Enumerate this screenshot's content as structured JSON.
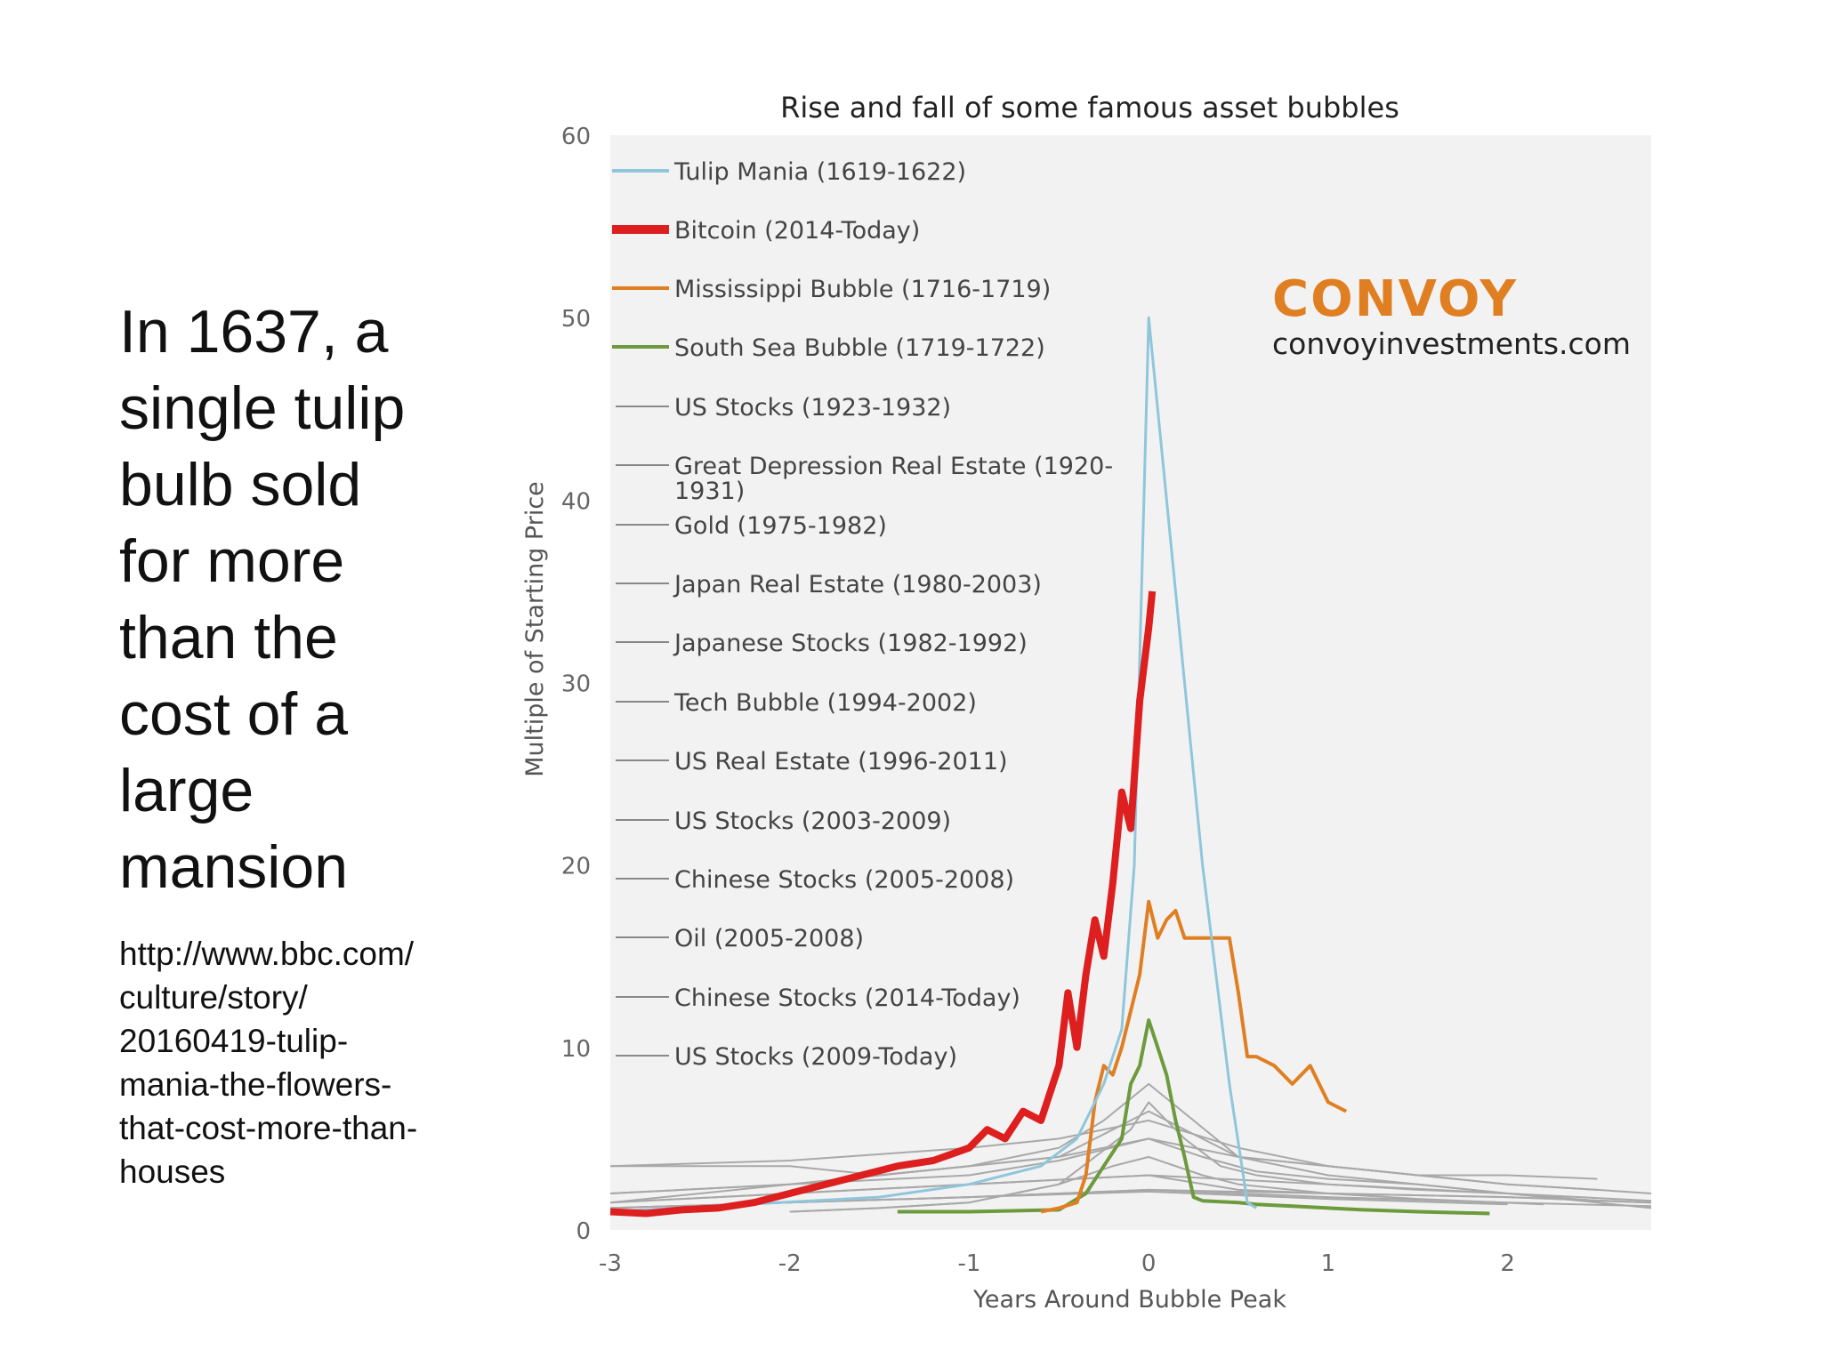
{
  "slide": {
    "headline_lines": [
      "In 1637, a",
      "single tulip",
      "bulb sold",
      "for more",
      "than the",
      "cost of a",
      "large",
      "mansion"
    ],
    "source_lines": [
      "http://www.bbc.com/",
      "culture/story/",
      "20160419-tulip-",
      "mania-the-flowers-",
      "that-cost-more-than-",
      "houses"
    ]
  },
  "brand": {
    "name": "CONVOY",
    "url": "convoyinvestments.com",
    "color": "#e07f22"
  },
  "chart_data": {
    "type": "line",
    "title": "Rise and fall of some famous asset bubbles",
    "xlabel": "Years Around Bubble Peak",
    "ylabel": "Multiple of Starting Price",
    "xlim": [
      -3,
      2.8
    ],
    "ylim": [
      0,
      60
    ],
    "xticks": [
      "-3",
      "-2",
      "-1",
      "0",
      "1",
      "2"
    ],
    "yticks": [
      "0",
      "10",
      "20",
      "30",
      "40",
      "50",
      "60"
    ],
    "background": "#f2f2f2",
    "legend_position": "top-left",
    "series": [
      {
        "name": "Tulip Mania (1619-1622)",
        "color": "#8fc6dc",
        "width": 3,
        "x": [
          -3,
          -1.5,
          -1.0,
          -0.6,
          -0.4,
          -0.25,
          -0.15,
          -0.08,
          0,
          0.15,
          0.3,
          0.45,
          0.55,
          0.6
        ],
        "y": [
          1,
          1.8,
          2.5,
          3.5,
          5,
          8,
          11,
          20,
          50,
          35,
          20,
          8,
          1.5,
          1.2
        ]
      },
      {
        "name": "Bitcoin (2014-Today)",
        "color": "#dd1f1f",
        "width": 8,
        "x": [
          -3,
          -2.8,
          -2.6,
          -2.4,
          -2.2,
          -2.0,
          -1.8,
          -1.6,
          -1.4,
          -1.2,
          -1.0,
          -0.9,
          -0.8,
          -0.7,
          -0.6,
          -0.5,
          -0.45,
          -0.4,
          -0.35,
          -0.3,
          -0.25,
          -0.2,
          -0.15,
          -0.1,
          -0.05,
          0,
          0.02
        ],
        "y": [
          1,
          0.9,
          1.1,
          1.2,
          1.5,
          2,
          2.5,
          3,
          3.5,
          3.8,
          4.5,
          5.5,
          5,
          6.5,
          6,
          9,
          13,
          10,
          14,
          17,
          15,
          19,
          24,
          22,
          29,
          33,
          35
        ]
      },
      {
        "name": "Mississippi Bubble (1716-1719)",
        "color": "#e07f22",
        "width": 4,
        "x": [
          -0.6,
          -0.5,
          -0.4,
          -0.35,
          -0.3,
          -0.25,
          -0.2,
          -0.15,
          -0.1,
          -0.05,
          0,
          0.05,
          0.1,
          0.15,
          0.2,
          0.3,
          0.45,
          0.5,
          0.55,
          0.6,
          0.7,
          0.8,
          0.9,
          1.0,
          1.1
        ],
        "y": [
          1,
          1.2,
          1.5,
          3,
          7,
          9,
          8.5,
          10,
          12,
          14,
          18,
          16,
          17,
          17.5,
          16,
          16,
          16,
          13,
          9.5,
          9.5,
          9,
          8,
          9,
          7,
          6.5
        ]
      },
      {
        "name": "South Sea Bubble (1719-1722)",
        "color": "#6d9a3c",
        "width": 4,
        "x": [
          -1.4,
          -1,
          -0.5,
          -0.35,
          -0.25,
          -0.15,
          -0.1,
          -0.05,
          0,
          0.05,
          0.1,
          0.15,
          0.2,
          0.25,
          0.3,
          0.5,
          0.6,
          0.8,
          1.0,
          1.2,
          1.5,
          1.9
        ],
        "y": [
          1,
          1,
          1.1,
          2,
          3.5,
          5,
          8,
          9,
          11.5,
          10,
          8.5,
          6,
          4,
          1.8,
          1.6,
          1.5,
          1.4,
          1.3,
          1.2,
          1.1,
          1,
          0.9
        ]
      },
      {
        "name": "US Stocks (1923-1932)",
        "color": "#a8a8a8",
        "width": 2,
        "x": [
          -3,
          -2,
          -1,
          -0.5,
          0,
          0.5,
          1.0,
          1.5,
          2.0,
          2.5,
          2.8
        ],
        "y": [
          2,
          2.5,
          3.5,
          4,
          5,
          4,
          3,
          2.5,
          2,
          1.5,
          1.2
        ]
      },
      {
        "name": "Great Depression Real Estate (1920-1931)",
        "color": "#a8a8a8",
        "width": 2,
        "x": [
          -3,
          -2,
          -1,
          0,
          1,
          2,
          2.8
        ],
        "y": [
          1.2,
          1.5,
          1.8,
          2.2,
          2,
          1.8,
          1.5
        ]
      },
      {
        "name": "Gold (1975-1982)",
        "color": "#a8a8a8",
        "width": 2,
        "x": [
          -3,
          -2,
          -1.5,
          -1,
          -0.5,
          -0.2,
          0,
          0.2,
          0.5,
          1,
          1.5,
          2,
          2.5
        ],
        "y": [
          3.5,
          3.5,
          3,
          3.5,
          4,
          5.5,
          6.5,
          5.5,
          4,
          3.5,
          3,
          3,
          2.8
        ]
      },
      {
        "name": "Japan Real Estate (1980-2003)",
        "color": "#a8a8a8",
        "width": 2,
        "x": [
          -3,
          -2,
          -1,
          0,
          1,
          2,
          2.8
        ],
        "y": [
          1.5,
          2,
          2.5,
          3,
          2.5,
          2,
          1.6
        ]
      },
      {
        "name": "Japanese Stocks (1982-1992)",
        "color": "#a8a8a8",
        "width": 2,
        "x": [
          -3,
          -2,
          -1,
          -0.5,
          0,
          0.5,
          1,
          1.5,
          2,
          2.5,
          2.8
        ],
        "y": [
          3.5,
          3.8,
          4.5,
          5,
          6,
          4.5,
          3.5,
          3,
          2.5,
          2.2,
          2
        ]
      },
      {
        "name": "Tech Bubble (1994-2002)",
        "color": "#a8a8a8",
        "width": 2,
        "x": [
          -3,
          -2.5,
          -2,
          -1.5,
          -1,
          -0.5,
          -0.25,
          0,
          0.25,
          0.5,
          1,
          1.5,
          2,
          2.5
        ],
        "y": [
          1.5,
          2,
          2.5,
          3,
          3.5,
          4.5,
          6,
          8,
          6,
          4,
          3.5,
          3,
          2.5,
          2.2
        ]
      },
      {
        "name": "US Real Estate (1996-2011)",
        "color": "#a8a8a8",
        "width": 2,
        "x": [
          -3,
          -2,
          -1,
          0,
          1,
          2
        ],
        "y": [
          1.2,
          1.5,
          1.8,
          2.1,
          1.7,
          1.4
        ]
      },
      {
        "name": "US Stocks (2003-2009)",
        "color": "#a8a8a8",
        "width": 2,
        "x": [
          -3,
          -2,
          -1,
          0,
          0.5,
          1,
          2,
          2.8
        ],
        "y": [
          1.5,
          2,
          2.5,
          3,
          2.2,
          2,
          1.8,
          1.5
        ]
      },
      {
        "name": "Chinese Stocks (2005-2008)",
        "color": "#a8a8a8",
        "width": 2,
        "x": [
          -2,
          -1.5,
          -1,
          -0.5,
          -0.3,
          -0.1,
          0,
          0.2,
          0.4,
          0.6,
          1,
          1.5,
          2
        ],
        "y": [
          1,
          1.2,
          1.5,
          2.5,
          4,
          5.5,
          7,
          5,
          3.5,
          3,
          2.5,
          2.2,
          2
        ]
      },
      {
        "name": "Oil (2005-2008)",
        "color": "#a8a8a8",
        "width": 2,
        "x": [
          -3,
          -2,
          -1,
          -0.5,
          0,
          0.3,
          0.6,
          1,
          1.5,
          2,
          2.5,
          2.8
        ],
        "y": [
          2,
          2.5,
          3,
          3.8,
          5,
          4,
          3.2,
          2.8,
          2.5,
          2,
          1.6,
          1.5
        ]
      },
      {
        "name": "Chinese Stocks (2014-Today)",
        "color": "#a8a8a8",
        "width": 2,
        "x": [
          -2,
          -1.5,
          -1,
          -0.5,
          -0.2,
          0,
          0.3,
          0.5,
          1,
          1.5,
          2.2
        ],
        "y": [
          1,
          1.2,
          1.5,
          2.5,
          3.5,
          4,
          3,
          2.5,
          2,
          1.7,
          1.4
        ]
      },
      {
        "name": "US Stocks (2009-Today)",
        "color": "#a8a8a8",
        "width": 2,
        "x": [
          -3,
          -2,
          -1,
          0,
          1,
          2,
          2.8
        ],
        "y": [
          1.2,
          1.5,
          1.8,
          2.2,
          1.8,
          1.5,
          1.3
        ]
      }
    ]
  }
}
